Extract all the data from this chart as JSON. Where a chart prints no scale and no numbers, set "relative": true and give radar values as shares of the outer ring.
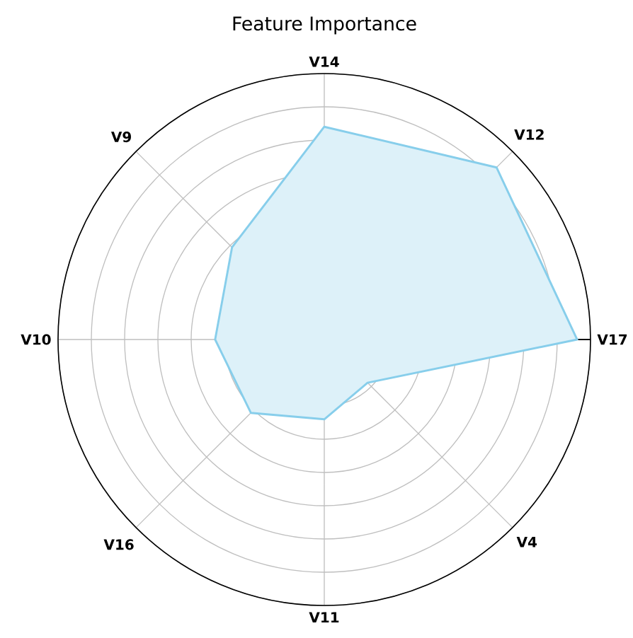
{
  "chart_data": {
    "type": "radar",
    "title": "Feature Importance",
    "categories": [
      "V14",
      "V12",
      "V17",
      "V4",
      "V11",
      "V16",
      "V10",
      "V9"
    ],
    "relative": true,
    "grid": true,
    "series": [
      {
        "color": "#87ceeb",
        "values": [
          0.8,
          0.915,
          0.95,
          0.23,
          0.3,
          0.39,
          0.41,
          0.49
        ]
      }
    ]
  }
}
